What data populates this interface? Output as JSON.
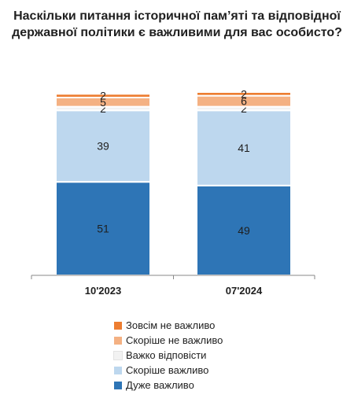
{
  "title_lines": [
    "Наскільки питання історичної пам’яті та відповідної",
    "державної політики є важливими для вас особисто?"
  ],
  "colors": {
    "very_important": "#2e75b6",
    "rather_important": "#bdd7ee",
    "hard_to_say": "#f2f2f2",
    "rather_not_important": "#f4b183",
    "not_important_at_all": "#ed7d31"
  },
  "chart_data": {
    "type": "bar",
    "stacked": true,
    "categories": [
      "10'2023",
      "07'2024"
    ],
    "ylim": [
      0,
      100
    ],
    "grid": false,
    "legend_position": "bottom",
    "series": [
      {
        "name": "Дуже важливо",
        "color": "#2e75b6",
        "values": [
          51,
          49
        ]
      },
      {
        "name": "Скоріше важливо",
        "color": "#bdd7ee",
        "values": [
          39,
          41
        ]
      },
      {
        "name": "Важко відповісти",
        "color": "#f2f2f2",
        "values": [
          2,
          2
        ]
      },
      {
        "name": "Скоріше не важливо",
        "color": "#f4b183",
        "values": [
          5,
          6
        ]
      },
      {
        "name": "Зовсім не важливо",
        "color": "#ed7d31",
        "values": [
          2,
          2
        ]
      }
    ]
  }
}
